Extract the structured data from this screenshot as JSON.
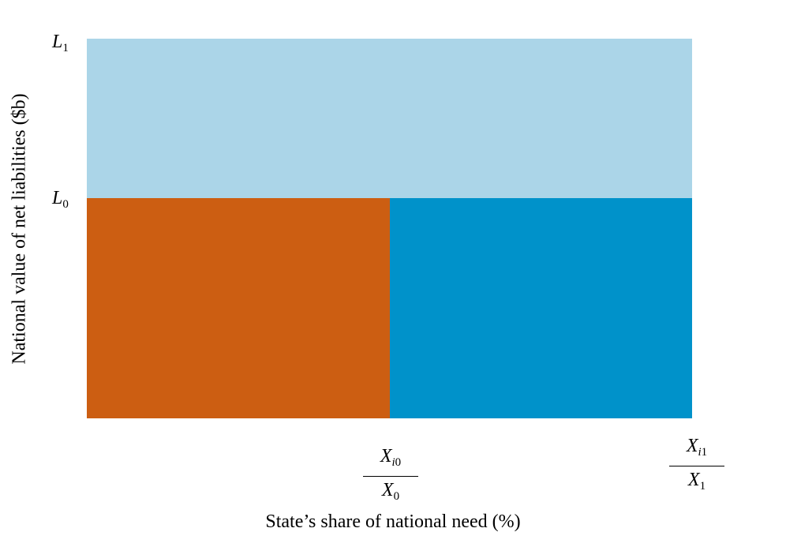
{
  "colors": {
    "top_region": "#abd5e8",
    "bottom_left_region": "#cc5e12",
    "bottom_right_region": "#0092ca"
  },
  "y_axis": {
    "title": "National value of net liabilities ($b)",
    "ticks": [
      {
        "var": "L",
        "sub": "1"
      },
      {
        "var": "L",
        "sub": "0"
      }
    ]
  },
  "x_axis": {
    "title": "State’s share of national need (%)",
    "ticks": [
      {
        "num_var": "X",
        "num_sub_i": "i",
        "num_sub": "0",
        "den_var": "X",
        "den_sub": "0"
      },
      {
        "num_var": "X",
        "num_sub_i": "i",
        "num_sub": "1",
        "den_var": "X",
        "den_sub": "1"
      }
    ]
  }
}
